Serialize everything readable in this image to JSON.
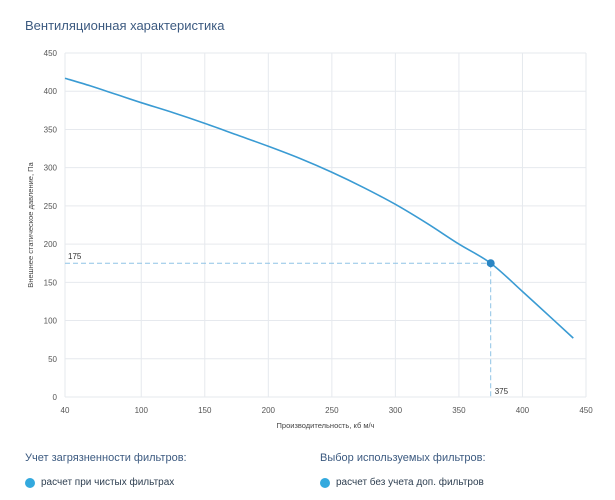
{
  "title": "Вентиляционная характеристика",
  "chart_data": {
    "type": "line",
    "title": "Вентиляционная характеристика",
    "xlabel": "Производительность, кб м/ч",
    "ylabel": "Внешнее статическое давление, Па",
    "xlim": [
      40,
      450
    ],
    "ylim": [
      0,
      450
    ],
    "xticks": [
      40,
      100,
      150,
      200,
      250,
      300,
      350,
      400,
      450
    ],
    "yticks": [
      0,
      50,
      100,
      150,
      200,
      250,
      300,
      350,
      400,
      450
    ],
    "grid": true,
    "series": [
      {
        "name": "Вентиляционная характеристика",
        "color": "#3a9bd3",
        "x": [
          40,
          60,
          80,
          100,
          125,
          150,
          175,
          200,
          225,
          250,
          275,
          300,
          325,
          350,
          375,
          400,
          425,
          440
        ],
        "y": [
          417,
          407,
          396,
          385,
          372,
          358,
          343,
          328,
          312,
          294,
          274,
          252,
          227,
          200,
          175,
          138,
          100,
          77
        ]
      }
    ],
    "operating_point": {
      "x": 375,
      "y": 175,
      "x_label": "375",
      "y_label": "175",
      "color": "#2a86c4"
    }
  },
  "filters_contamination": {
    "title": "Учет загрязненности фильтров:",
    "option": "расчет при чистых фильтрах"
  },
  "filters_selection": {
    "title": "Выбор используемых фильтров:",
    "option": "расчет без учета доп. фильтров"
  },
  "colors": {
    "accent": "#33a9de",
    "curve": "#3a9bd3",
    "grid": "#e6e9ee",
    "text": "#3c5a80"
  }
}
